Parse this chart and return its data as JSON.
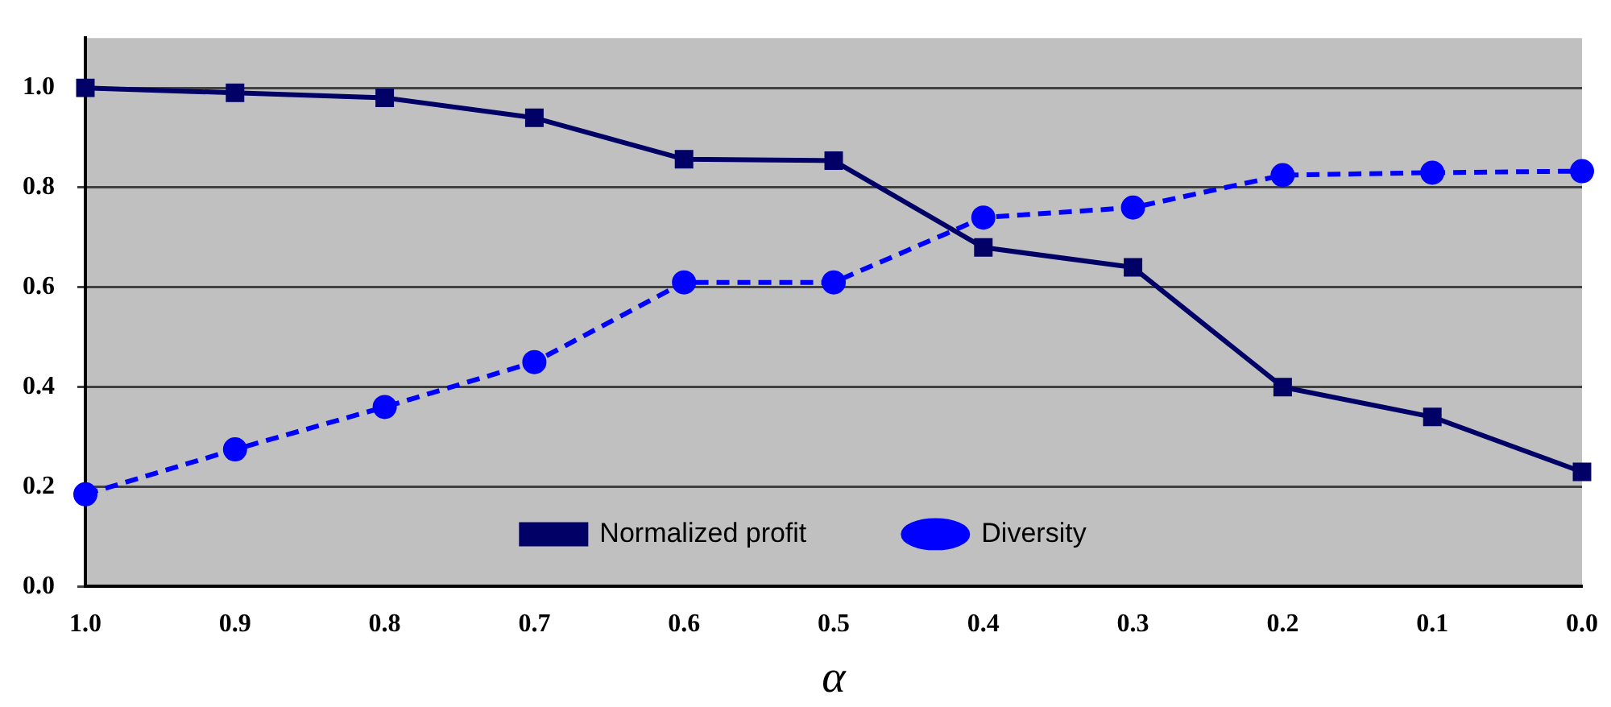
{
  "chart_data": {
    "type": "line",
    "xlabel": "α",
    "categories": [
      "1.0",
      "0.9",
      "0.8",
      "0.7",
      "0.6",
      "0.5",
      "0.4",
      "0.3",
      "0.2",
      "0.1",
      "0.0"
    ],
    "series": [
      {
        "name": "Normalized profit",
        "color": "#000066",
        "marker": "square",
        "line_style": "solid",
        "values": [
          1.0,
          0.99,
          0.98,
          0.94,
          0.857,
          0.854,
          0.68,
          0.64,
          0.4,
          0.34,
          0.23
        ]
      },
      {
        "name": "Diversity",
        "color": "#0000ff",
        "marker": "circle",
        "line_style": "dashed",
        "values": [
          0.185,
          0.275,
          0.36,
          0.45,
          0.61,
          0.61,
          0.74,
          0.76,
          0.825,
          0.83,
          0.833
        ]
      }
    ],
    "ylim": [
      0,
      1.1
    ],
    "yticks": [
      {
        "value": 0,
        "label": "0.0"
      },
      {
        "value": 0.2,
        "label": "0.2"
      },
      {
        "value": 0.4,
        "label": "0.4"
      },
      {
        "value": 0.6,
        "label": "0.6"
      },
      {
        "value": 0.8,
        "label": "0.8"
      },
      {
        "value": 1.0,
        "label": "1.0"
      }
    ],
    "grid": "y",
    "legend": "bottom"
  }
}
